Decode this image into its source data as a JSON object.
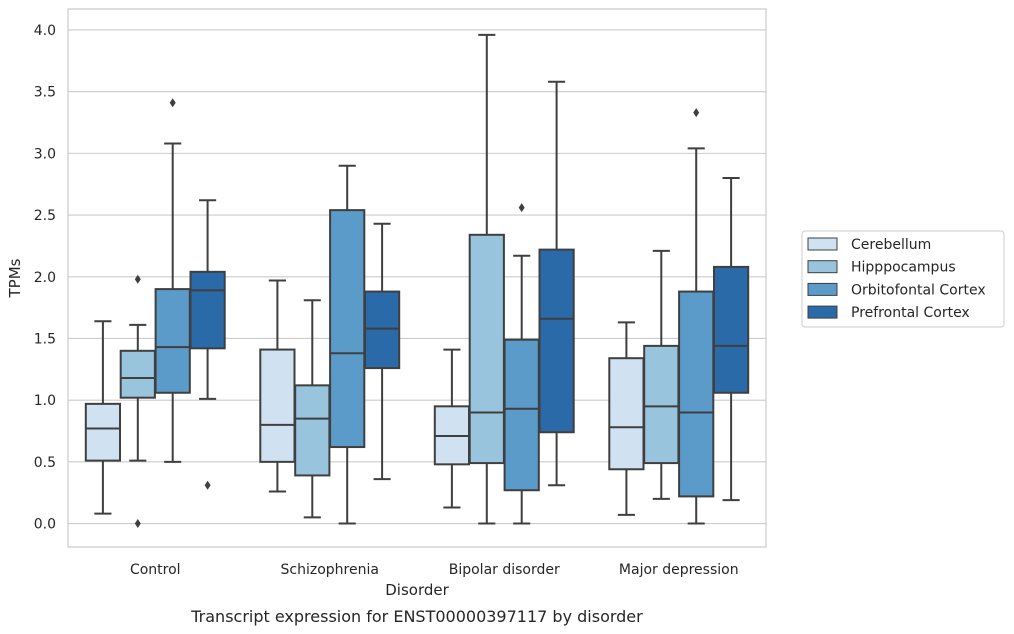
{
  "chart_data": {
    "type": "box",
    "caption": "Transcript expression for ENST00000397117 by disorder",
    "xlabel": "Disorder",
    "ylabel": "TPMs",
    "ylim": [
      -0.19,
      4.17
    ],
    "yticks": [
      0.0,
      0.5,
      1.0,
      1.5,
      2.0,
      2.5,
      3.0,
      3.5,
      4.0
    ],
    "ytick_labels": [
      "0.0",
      "0.5",
      "1.0",
      "1.5",
      "2.0",
      "2.5",
      "3.0",
      "3.5",
      "4.0"
    ],
    "grid": true,
    "legend_position": "right",
    "categories": [
      "Control",
      "Schizophrenia",
      "Bipolar disorder",
      "Major depression"
    ],
    "series": [
      {
        "name": "Cerebellum",
        "color": "#d0e1f2",
        "boxes": [
          {
            "whisker_low": 0.08,
            "q1": 0.51,
            "median": 0.77,
            "q3": 0.97,
            "whisker_high": 1.64,
            "outliers": []
          },
          {
            "whisker_low": 0.26,
            "q1": 0.5,
            "median": 0.8,
            "q3": 1.41,
            "whisker_high": 1.97,
            "outliers": []
          },
          {
            "whisker_low": 0.13,
            "q1": 0.48,
            "median": 0.71,
            "q3": 0.95,
            "whisker_high": 1.41,
            "outliers": []
          },
          {
            "whisker_low": 0.07,
            "q1": 0.44,
            "median": 0.78,
            "q3": 1.34,
            "whisker_high": 1.63,
            "outliers": []
          }
        ]
      },
      {
        "name": "Hipppocampus",
        "color": "#99c4de",
        "boxes": [
          {
            "whisker_low": 0.51,
            "q1": 1.02,
            "median": 1.18,
            "q3": 1.4,
            "whisker_high": 1.61,
            "outliers": [
              1.98,
              0.0
            ]
          },
          {
            "whisker_low": 0.05,
            "q1": 0.39,
            "median": 0.85,
            "q3": 1.12,
            "whisker_high": 1.81,
            "outliers": []
          },
          {
            "whisker_low": 0.0,
            "q1": 0.49,
            "median": 0.9,
            "q3": 2.34,
            "whisker_high": 3.96,
            "outliers": []
          },
          {
            "whisker_low": 0.2,
            "q1": 0.49,
            "median": 0.95,
            "q3": 1.44,
            "whisker_high": 2.21,
            "outliers": []
          }
        ]
      },
      {
        "name": "Orbitofontal Cortex",
        "color": "#5b9bc9",
        "boxes": [
          {
            "whisker_low": 0.5,
            "q1": 1.06,
            "median": 1.43,
            "q3": 1.9,
            "whisker_high": 3.08,
            "outliers": [
              3.41
            ]
          },
          {
            "whisker_low": 0.0,
            "q1": 0.62,
            "median": 1.38,
            "q3": 2.54,
            "whisker_high": 2.9,
            "outliers": []
          },
          {
            "whisker_low": 0.0,
            "q1": 0.27,
            "median": 0.93,
            "q3": 1.49,
            "whisker_high": 2.17,
            "outliers": [
              2.56
            ]
          },
          {
            "whisker_low": 0.0,
            "q1": 0.22,
            "median": 0.9,
            "q3": 1.88,
            "whisker_high": 3.04,
            "outliers": [
              3.33
            ]
          }
        ]
      },
      {
        "name": "Prefrontal Cortex",
        "color": "#2b6aa8",
        "boxes": [
          {
            "whisker_low": 1.01,
            "q1": 1.42,
            "median": 1.89,
            "q3": 2.04,
            "whisker_high": 2.62,
            "outliers": [
              0.31
            ]
          },
          {
            "whisker_low": 0.36,
            "q1": 1.26,
            "median": 1.58,
            "q3": 1.88,
            "whisker_high": 2.43,
            "outliers": []
          },
          {
            "whisker_low": 0.31,
            "q1": 0.74,
            "median": 1.66,
            "q3": 2.22,
            "whisker_high": 3.58,
            "outliers": []
          },
          {
            "whisker_low": 0.19,
            "q1": 1.06,
            "median": 1.44,
            "q3": 2.08,
            "whisker_high": 2.8,
            "outliers": []
          }
        ]
      }
    ]
  }
}
